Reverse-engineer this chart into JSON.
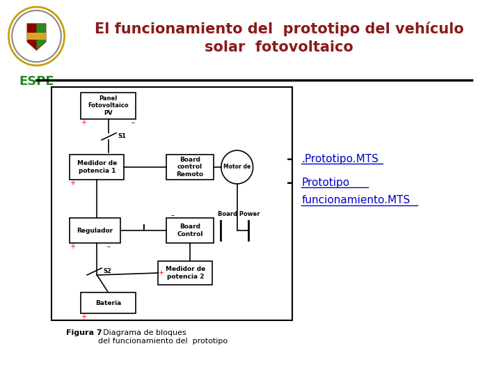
{
  "title_line1": "El funcionamiento del  prototipo del vehículo",
  "title_line2": "solar  fotovoltaico",
  "title_color": "#8B1A1A",
  "espe_text": "ESPE",
  "espe_color": "#228B22",
  "bullet1_dash": "–",
  "bullet1_text": ".Prototipo.MTS",
  "bullet2_dash": "–",
  "bullet2_text1": "Prototipo",
  "bullet2_text2": "funcionamiento.MTS",
  "bullet_color": "#0000CC",
  "figura_bold": "Figura 7",
  "figura_text": ". Diagrama de bloques\ndel funcionamiento del  prototipo",
  "bg_color": "#FFFFFF",
  "line_color": "#000000",
  "diagram_box_color": "#000000",
  "diagram_bg": "#FFFFFF"
}
